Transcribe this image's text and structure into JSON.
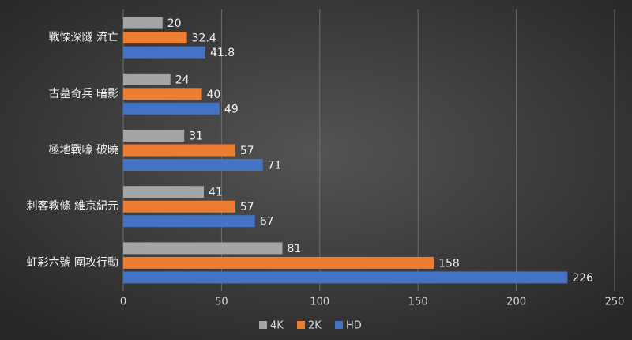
{
  "chart_data": {
    "type": "hbar",
    "categories": [
      "戰慄深隧 流亡",
      "古墓奇兵 暗影",
      "極地戰嚎 破曉",
      "刺客教條 維京紀元",
      "虹彩六號 圍攻行動"
    ],
    "series": [
      {
        "name": "4K",
        "color": "#a5a5a5",
        "values": [
          20,
          24,
          31,
          41,
          81
        ]
      },
      {
        "name": "2K",
        "color": "#ed7d31",
        "values": [
          32.4,
          40,
          57,
          57,
          158
        ]
      },
      {
        "name": "HD",
        "color": "#4472c4",
        "values": [
          41.8,
          49,
          71,
          67,
          226
        ]
      }
    ],
    "xlim": [
      0,
      250
    ],
    "xticks": [
      0,
      50,
      100,
      150,
      200,
      250
    ],
    "grid": true,
    "legend": "bottom"
  }
}
